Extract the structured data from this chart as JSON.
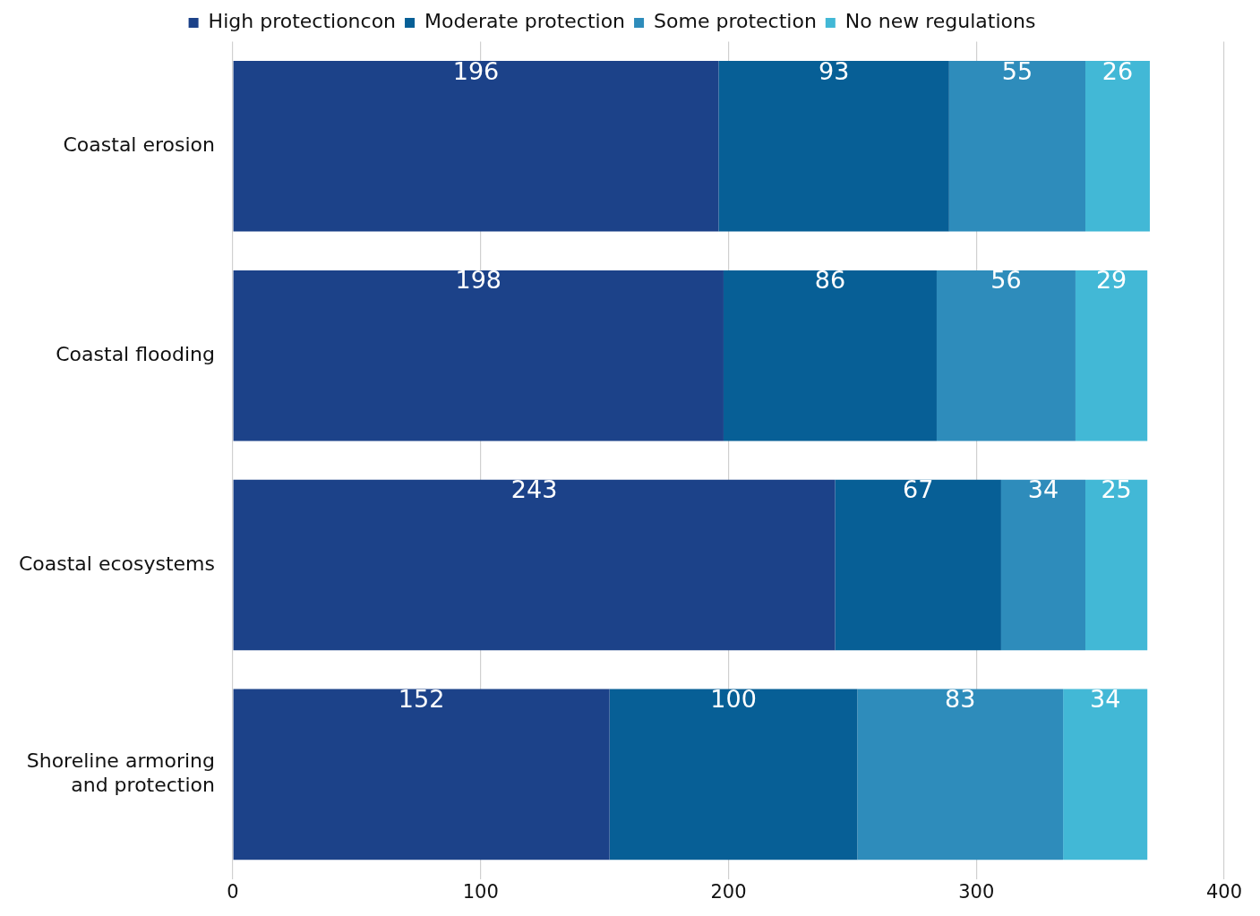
{
  "chart_data": {
    "type": "bar",
    "orientation": "horizontal",
    "stacked": true,
    "categories": [
      "Coastal erosion",
      "Coastal flooding",
      "Coastal ecosystems",
      "Shoreline armoring and protection"
    ],
    "series": [
      {
        "name": "High protectioncon",
        "color": "#1c4289",
        "values": [
          196,
          198,
          243,
          152
        ]
      },
      {
        "name": "Moderate protection",
        "color": "#075f96",
        "values": [
          93,
          86,
          67,
          100
        ]
      },
      {
        "name": "Some protection",
        "color": "#2e8cbb",
        "values": [
          55,
          56,
          34,
          83
        ]
      },
      {
        "name": "No new regulations",
        "color": "#42b8d6",
        "values": [
          26,
          29,
          25,
          34
        ]
      }
    ],
    "xlim": [
      0,
      400
    ],
    "xticks": [
      0,
      100,
      200,
      300,
      400
    ],
    "grid": "x",
    "legend": "top",
    "data_labels": true
  }
}
